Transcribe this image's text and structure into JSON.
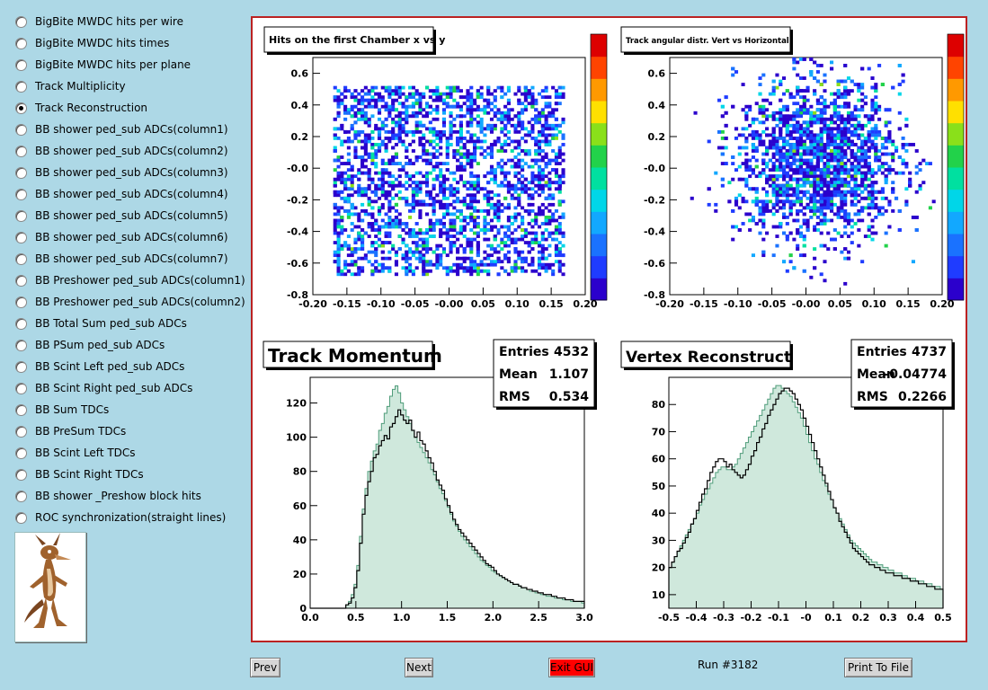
{
  "sidebar": {
    "items": [
      {
        "label": "BigBite MWDC hits per wire",
        "selected": false
      },
      {
        "label": "BigBite MWDC hits times",
        "selected": false
      },
      {
        "label": "BigBite MWDC hits per plane",
        "selected": false
      },
      {
        "label": "Track Multiplicity",
        "selected": false
      },
      {
        "label": "Track Reconstruction",
        "selected": true
      },
      {
        "label": "BB shower ped_sub ADCs(column1)",
        "selected": false
      },
      {
        "label": "BB shower ped_sub ADCs(column2)",
        "selected": false
      },
      {
        "label": "BB shower ped_sub ADCs(column3)",
        "selected": false
      },
      {
        "label": "BB shower ped_sub ADCs(column4)",
        "selected": false
      },
      {
        "label": "BB shower ped_sub ADCs(column5)",
        "selected": false
      },
      {
        "label": "BB shower ped_sub ADCs(column6)",
        "selected": false
      },
      {
        "label": "BB shower ped_sub ADCs(column7)",
        "selected": false
      },
      {
        "label": "BB Preshower ped_sub ADCs(column1)",
        "selected": false
      },
      {
        "label": "BB Preshower ped_sub ADCs(column2)",
        "selected": false
      },
      {
        "label": "BB Total Sum ped_sub ADCs",
        "selected": false
      },
      {
        "label": "BB PSum ped_sub ADCs",
        "selected": false
      },
      {
        "label": "BB Scint Left ped_sub ADCs",
        "selected": false
      },
      {
        "label": "BB Scint Right ped_sub ADCs",
        "selected": false
      },
      {
        "label": "BB Sum TDCs",
        "selected": false
      },
      {
        "label": "BB PreSum TDCs",
        "selected": false
      },
      {
        "label": "BB Scint Left TDCs",
        "selected": false
      },
      {
        "label": "BB Scint Right TDCs",
        "selected": false
      },
      {
        "label": "BB shower _Preshow block hits",
        "selected": false
      },
      {
        "label": "ROC synchronization(straight lines)",
        "selected": false
      }
    ]
  },
  "buttons": {
    "prev": "Prev",
    "next": "Next",
    "exit": "Exit GUI",
    "print": "Print To File",
    "exit_color": "#ff0000"
  },
  "run_label": "Run #3182",
  "chart_data": [
    {
      "type": "heatmap",
      "title": "Hits on the first Chamber x vs y",
      "xlim": [
        -0.2,
        0.2
      ],
      "ylim": [
        -0.8,
        0.7
      ],
      "xticks": [
        "-0.20",
        "-0.15",
        "-0.10",
        "-0.05",
        "-0.00",
        "0.05",
        "0.10",
        "0.15",
        "0.20"
      ],
      "yticks": [
        "-0.8",
        "-0.6",
        "-0.4",
        "-0.2",
        "-0.0",
        "0.2",
        "0.4",
        "0.6"
      ],
      "distribution": {
        "x_range": [
          -0.17,
          0.17
        ],
        "y_range": [
          -0.67,
          0.52
        ],
        "shape": "uniform"
      }
    },
    {
      "type": "heatmap",
      "title": "Track angular distr. Vert vs Horizontal",
      "xlim": [
        -0.2,
        0.2
      ],
      "ylim": [
        -0.8,
        0.7
      ],
      "xticks": [
        "-0.20",
        "-0.15",
        "-0.10",
        "-0.05",
        "-0.00",
        "0.05",
        "0.10",
        "0.15",
        "0.20"
      ],
      "yticks": [
        "-0.8",
        "-0.6",
        "-0.4",
        "-0.2",
        "-0.0",
        "0.2",
        "0.4",
        "0.6"
      ],
      "distribution": {
        "x_center": 0.02,
        "y_center": 0.05,
        "x_sigma": 0.06,
        "y_sigma": 0.25,
        "shape": "gaussian"
      }
    },
    {
      "type": "histogram",
      "title": "Track Momentum",
      "stats": {
        "Entries": "4532",
        "Mean": "1.107",
        "RMS": "0.534"
      },
      "xlim": [
        0,
        3.0
      ],
      "ylim": [
        0,
        135
      ],
      "xticks": [
        "0.0",
        "0.5",
        "1.0",
        "1.5",
        "2.0",
        "2.5",
        "3.0"
      ],
      "yticks": [
        "0",
        "20",
        "40",
        "60",
        "80",
        "100",
        "120"
      ],
      "colors": {
        "fill": "#cfe8dc",
        "outline_data": "#000000",
        "outline_ref": "#4f9c7a"
      },
      "series": [
        {
          "values": [
            0,
            0,
            0,
            0,
            0,
            0,
            0,
            0,
            0,
            0,
            0,
            0,
            0,
            2,
            3,
            6,
            12,
            22,
            38,
            55,
            66,
            74,
            80,
            88,
            90,
            95,
            98,
            101,
            99,
            106,
            108,
            112,
            116,
            113,
            110,
            108,
            110,
            104,
            100,
            103,
            98,
            96,
            92,
            88,
            85,
            80,
            75,
            72,
            69,
            64,
            60,
            56,
            52,
            49,
            46,
            44,
            42,
            40,
            38,
            36,
            34,
            32,
            30,
            28,
            26,
            25,
            24,
            22,
            20,
            19,
            18,
            17,
            16,
            15,
            14,
            14,
            13,
            12,
            12,
            11,
            11,
            10,
            10,
            9,
            9,
            8,
            8,
            8,
            7,
            7,
            6,
            6,
            6,
            5,
            5,
            5,
            4,
            4,
            4,
            4
          ]
        },
        {
          "values": [
            0,
            0,
            0,
            0,
            0,
            0,
            0,
            0,
            0,
            0,
            0,
            0,
            0,
            2,
            4,
            8,
            14,
            25,
            42,
            58,
            70,
            80,
            86,
            92,
            96,
            104,
            108,
            114,
            118,
            124,
            128,
            130,
            126,
            120,
            116,
            112,
            108,
            104,
            100,
            97,
            94,
            91,
            88,
            85,
            81,
            78,
            74,
            70,
            67,
            63,
            59,
            55,
            51,
            48,
            45,
            42,
            40,
            38,
            36,
            34,
            32,
            30,
            28,
            27,
            25,
            24,
            22,
            21,
            20,
            19,
            18,
            17,
            16,
            15,
            14,
            14,
            13,
            12,
            12,
            11,
            10,
            10,
            9,
            9,
            8,
            8,
            7,
            7,
            7,
            6,
            6,
            6,
            5,
            5,
            5,
            4,
            4,
            4,
            4,
            3
          ]
        }
      ]
    },
    {
      "type": "histogram",
      "title": "Vertex Reconstruct",
      "stats": {
        "Entries": "4737",
        "Mean": "-0.04774",
        "RMS": "0.2266"
      },
      "xlim": [
        -0.5,
        0.5
      ],
      "ylim": [
        5,
        90
      ],
      "xticks": [
        "-0.5",
        "-0.4",
        "-0.3",
        "-0.2",
        "-0.1",
        "-0",
        "0.1",
        "0.2",
        "0.3",
        "0.4",
        "0.5"
      ],
      "yticks": [
        "10",
        "20",
        "30",
        "40",
        "50",
        "60",
        "70",
        "80"
      ],
      "colors": {
        "fill": "#cfe8dc",
        "outline_data": "#000000",
        "outline_ref": "#4f9c7a"
      },
      "series": [
        {
          "values": [
            20,
            22,
            24,
            26,
            27,
            29,
            31,
            33,
            36,
            38,
            41,
            44,
            47,
            49,
            52,
            55,
            57,
            59,
            60,
            60,
            59,
            57,
            58,
            56,
            55,
            54,
            53,
            54,
            56,
            58,
            61,
            63,
            66,
            68,
            71,
            73,
            76,
            78,
            80,
            82,
            84,
            85,
            86,
            86,
            85,
            84,
            82,
            80,
            78,
            75,
            72,
            69,
            66,
            63,
            60,
            57,
            54,
            51,
            48,
            45,
            42,
            40,
            37,
            35,
            33,
            31,
            29,
            27,
            26,
            25,
            24,
            23,
            22,
            21,
            21,
            20,
            20,
            19,
            19,
            18,
            18,
            18,
            17,
            17,
            17,
            16,
            16,
            16,
            15,
            15,
            15,
            14,
            14,
            14,
            13,
            13,
            13,
            12,
            12,
            12
          ]
        },
        {
          "values": [
            20,
            22,
            24,
            26,
            28,
            30,
            32,
            34,
            36,
            38,
            40,
            43,
            45,
            47,
            49,
            51,
            53,
            55,
            56,
            57,
            57,
            56,
            56,
            57,
            58,
            60,
            62,
            64,
            66,
            68,
            70,
            72,
            74,
            76,
            78,
            80,
            82,
            84,
            86,
            87,
            87,
            86,
            85,
            84,
            83,
            81,
            79,
            77,
            75,
            72,
            69,
            66,
            63,
            60,
            58,
            55,
            52,
            50,
            47,
            45,
            42,
            40,
            38,
            36,
            34,
            32,
            30,
            29,
            28,
            27,
            26,
            25,
            24,
            23,
            22,
            22,
            21,
            21,
            20,
            20,
            19,
            19,
            18,
            18,
            18,
            17,
            17,
            16,
            16,
            16,
            15,
            15,
            15,
            14,
            14,
            14,
            13,
            13,
            13,
            12
          ]
        }
      ]
    }
  ]
}
